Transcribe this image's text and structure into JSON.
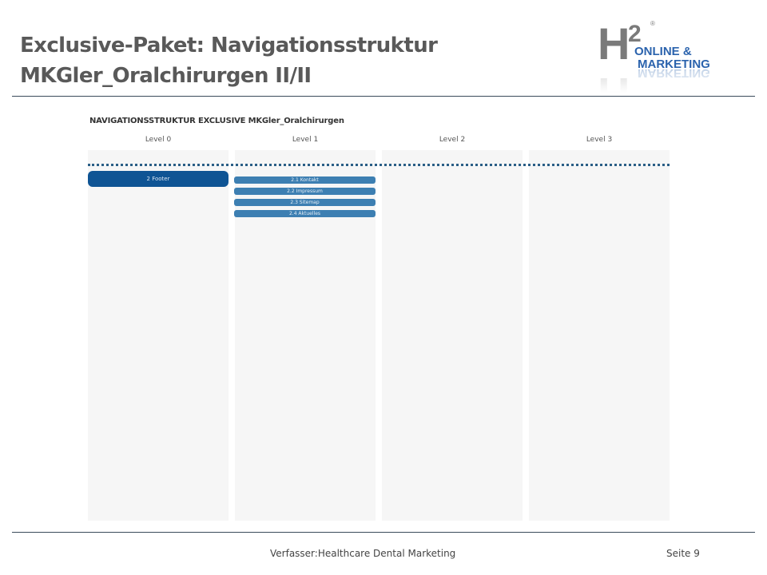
{
  "slide": {
    "title_line1": "Exclusive-Paket: Navigationsstruktur",
    "title_line2": "MKGler_Oralchirurgen II/II"
  },
  "logo": {
    "h": "H",
    "sup": "2",
    "reg": "®",
    "line1": "ONLINE &",
    "line2": "MARKETING",
    "icon": "h2-online-marketing-logo",
    "colors": {
      "gray": "#7a7a7a",
      "blue": "#2b63ad"
    }
  },
  "diagram": {
    "title": "NAVIGATIONSSTRUKTUR EXCLUSIVE MKGler_Oralchirurgen",
    "levels": [
      "Level 0",
      "Level 1",
      "Level 2",
      "Level 3"
    ],
    "level0_node": "2 Footer",
    "level1_nodes": [
      "2.1 Kontakt",
      "2.2 Impressum",
      "2.3 Sitemap",
      "2.4 Aktuelles"
    ],
    "colors": {
      "main_node": "#0f5494",
      "sub_node": "#3d7fb2",
      "column_bg": "#f6f6f6",
      "dotted_line": "#2a5e86"
    }
  },
  "footer": {
    "author": "Verfasser:Healthcare Dental Marketing",
    "page": "Seite 9"
  }
}
